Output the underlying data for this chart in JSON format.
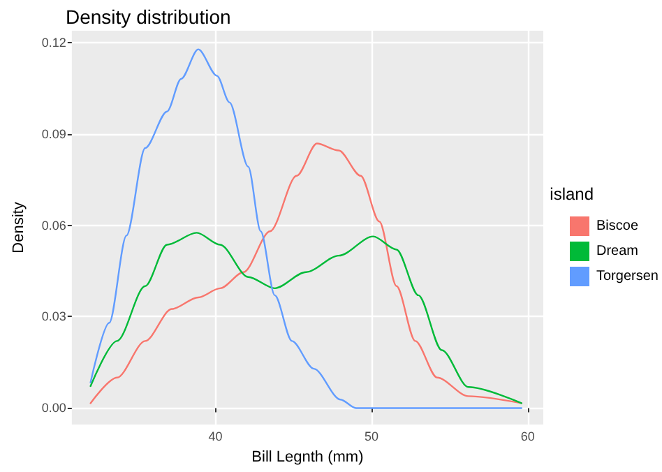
{
  "chart_data": {
    "type": "line",
    "title": "Density distribution",
    "xlabel": "Bill Legnth (mm)",
    "ylabel": "Density",
    "legend_title": "island",
    "legend": "right",
    "grid": true,
    "marker": "none",
    "line_style": "solid",
    "xlim": [
      30.8,
      61.0
    ],
    "ylim": [
      -0.0054,
      0.1238
    ],
    "xticks": [
      40,
      50,
      60
    ],
    "yticks": [
      {
        "value": 0,
        "label": "0.00"
      },
      0.03,
      0.06,
      0.09,
      0.12
    ],
    "series": [
      {
        "name": "Biscoe",
        "color": "#f8766d",
        "x": [
          32.0,
          33.7,
          35.5,
          37.2,
          38.9,
          40.3,
          41.8,
          43.5,
          45.2,
          46.5,
          47.9,
          49.3,
          50.5,
          51.6,
          52.8,
          54.2,
          56.2,
          59.6
        ],
        "values": [
          0.0016,
          0.01,
          0.022,
          0.0325,
          0.0363,
          0.0393,
          0.0446,
          0.058,
          0.0762,
          0.0868,
          0.0845,
          0.0762,
          0.0612,
          0.04,
          0.022,
          0.01,
          0.0039,
          0.0016
        ]
      },
      {
        "name": "Dream",
        "color": "#00ba38",
        "x": [
          32.0,
          33.7,
          35.5,
          36.9,
          38.8,
          40.3,
          42.1,
          43.8,
          45.8,
          47.9,
          50.1,
          51.6,
          53.0,
          54.5,
          56.2,
          59.6
        ],
        "values": [
          0.0072,
          0.022,
          0.04,
          0.0536,
          0.0575,
          0.0536,
          0.043,
          0.0393,
          0.0446,
          0.05,
          0.0563,
          0.052,
          0.037,
          0.019,
          0.0069,
          0.0016
        ]
      },
      {
        "name": "Torgersen",
        "color": "#619cff",
        "x": [
          32.0,
          33.2,
          34.3,
          35.5,
          36.9,
          37.8,
          38.9,
          40.1,
          40.9,
          42.1,
          42.9,
          43.8,
          44.9,
          46.3,
          48.0,
          49.0,
          59.6
        ],
        "values": [
          0.0084,
          0.028,
          0.0566,
          0.0853,
          0.0973,
          0.108,
          0.1177,
          0.109,
          0.1003,
          0.0792,
          0.058,
          0.037,
          0.022,
          0.0129,
          0.0028,
          0,
          0
        ]
      }
    ]
  }
}
